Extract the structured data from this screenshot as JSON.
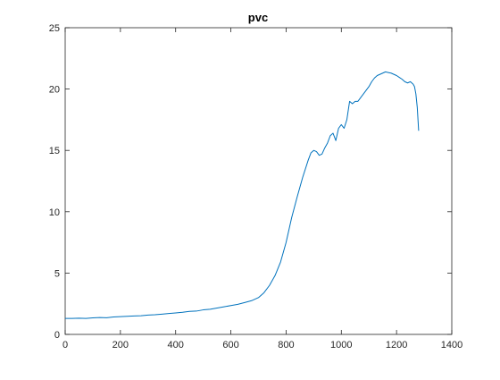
{
  "chart_data": {
    "type": "line",
    "title": "pvc",
    "xlabel": "",
    "ylabel": "",
    "xlim": [
      0,
      1400
    ],
    "ylim": [
      0,
      25
    ],
    "xticks": [
      0,
      200,
      400,
      600,
      800,
      1000,
      1200,
      1400
    ],
    "yticks": [
      0,
      5,
      10,
      15,
      20,
      25
    ],
    "grid": false,
    "colors": {
      "line": "#0072BD",
      "axes": "#262626",
      "background": "#ffffff"
    },
    "series": [
      {
        "x": [
          0,
          25,
          50,
          75,
          100,
          125,
          150,
          175,
          200,
          225,
          250,
          275,
          300,
          325,
          350,
          375,
          400,
          425,
          450,
          475,
          500,
          525,
          550,
          575,
          600,
          625,
          650,
          675,
          700,
          720,
          740,
          760,
          780,
          800,
          820,
          840,
          860,
          880,
          890,
          900,
          910,
          920,
          930,
          940,
          950,
          960,
          970,
          980,
          990,
          1000,
          1010,
          1020,
          1030,
          1040,
          1050,
          1060,
          1070,
          1080,
          1090,
          1100,
          1110,
          1120,
          1130,
          1140,
          1150,
          1160,
          1170,
          1180,
          1190,
          1200,
          1210,
          1220,
          1230,
          1240,
          1250,
          1260,
          1265,
          1270,
          1275,
          1280
        ],
        "y": [
          1.3,
          1.3,
          1.32,
          1.3,
          1.35,
          1.38,
          1.36,
          1.42,
          1.45,
          1.48,
          1.5,
          1.52,
          1.58,
          1.6,
          1.65,
          1.7,
          1.75,
          1.8,
          1.88,
          1.9,
          2.0,
          2.05,
          2.15,
          2.25,
          2.35,
          2.45,
          2.6,
          2.75,
          3.0,
          3.4,
          4.0,
          4.8,
          5.9,
          7.5,
          9.5,
          11.2,
          12.8,
          14.2,
          14.8,
          15.0,
          14.9,
          14.6,
          14.7,
          15.2,
          15.6,
          16.2,
          16.4,
          15.8,
          16.8,
          17.1,
          16.8,
          17.5,
          19.0,
          18.8,
          19.0,
          19.0,
          19.3,
          19.6,
          19.9,
          20.2,
          20.6,
          20.9,
          21.1,
          21.2,
          21.3,
          21.4,
          21.35,
          21.3,
          21.2,
          21.1,
          20.95,
          20.8,
          20.6,
          20.5,
          20.6,
          20.4,
          20.2,
          19.6,
          18.5,
          16.6
        ]
      }
    ]
  }
}
